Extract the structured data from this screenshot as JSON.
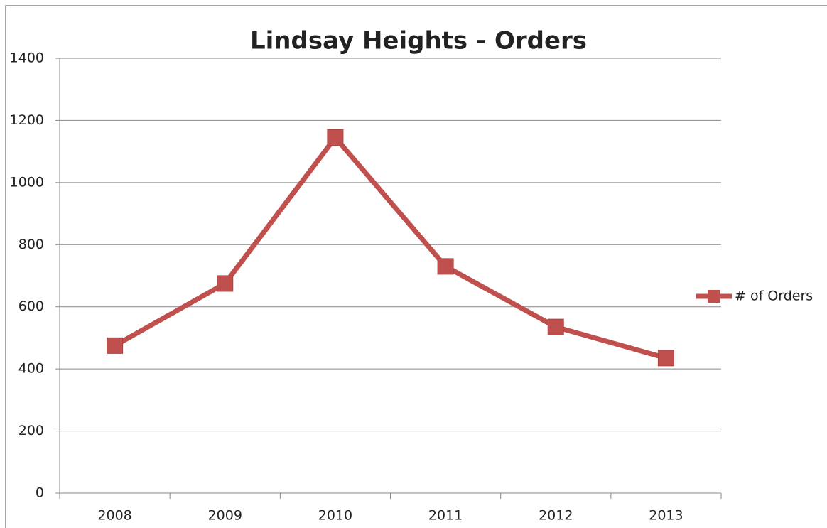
{
  "chart_data": {
    "type": "line",
    "title": "Lindsay Heights - Orders",
    "categories": [
      "2008",
      "2009",
      "2010",
      "2011",
      "2012",
      "2013"
    ],
    "series": [
      {
        "name": "# of Orders",
        "color": "#c0504d",
        "values": [
          475,
          675,
          1145,
          730,
          535,
          435
        ]
      }
    ],
    "ylim": [
      0,
      1400
    ],
    "yticks": [
      0,
      200,
      400,
      600,
      800,
      1000,
      1200,
      1400
    ],
    "grid": true,
    "legend": "right"
  }
}
